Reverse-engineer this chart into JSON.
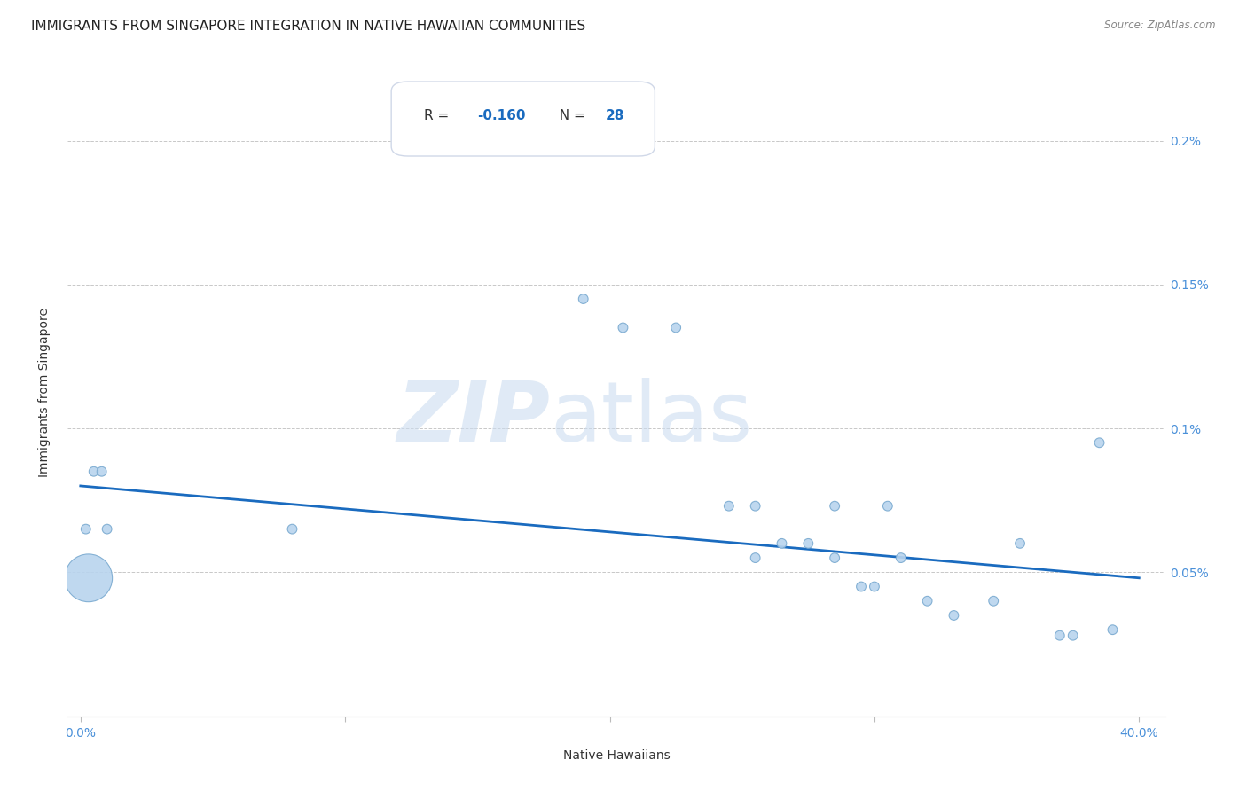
{
  "title": "IMMIGRANTS FROM SINGAPORE INTEGRATION IN NATIVE HAWAIIAN COMMUNITIES",
  "source": "Source: ZipAtlas.com",
  "xlabel": "Native Hawaiians",
  "ylabel": "Immigrants from Singapore",
  "R": -0.16,
  "N": 28,
  "xlim": [
    0.0,
    0.4
  ],
  "ylim": [
    0.0,
    0.0022
  ],
  "ytick_positions": [
    0.0,
    0.0005,
    0.001,
    0.0015,
    0.002
  ],
  "ytick_labels": [
    "",
    "0.05%",
    "0.1%",
    "0.15%",
    "0.2%"
  ],
  "xtick_positions": [
    0.0,
    0.1,
    0.2,
    0.3,
    0.4
  ],
  "xtick_labels": [
    "0.0%",
    "",
    "",
    "",
    "40.0%"
  ],
  "scatter_x": [
    0.002,
    0.005,
    0.008,
    0.01,
    0.003,
    0.08,
    0.19,
    0.205,
    0.225,
    0.245,
    0.255,
    0.255,
    0.265,
    0.275,
    0.285,
    0.285,
    0.295,
    0.3,
    0.305,
    0.31,
    0.32,
    0.33,
    0.345,
    0.355,
    0.37,
    0.375,
    0.385,
    0.39
  ],
  "scatter_y": [
    0.00065,
    0.00085,
    0.00085,
    0.00065,
    0.00048,
    0.00065,
    0.00145,
    0.00135,
    0.00135,
    0.00073,
    0.00073,
    0.00055,
    0.0006,
    0.0006,
    0.00055,
    0.00073,
    0.00045,
    0.00045,
    0.00073,
    0.00055,
    0.0004,
    0.00035,
    0.0004,
    0.0006,
    0.00028,
    0.00028,
    0.00095,
    0.0003
  ],
  "scatter_sizes": [
    60,
    60,
    60,
    60,
    1500,
    60,
    60,
    60,
    60,
    60,
    60,
    60,
    60,
    60,
    60,
    60,
    60,
    60,
    60,
    60,
    60,
    60,
    60,
    60,
    60,
    60,
    60,
    60
  ],
  "dot_color": "#b8d4ee",
  "dot_edgecolor": "#7aaad0",
  "line_color": "#1a6bbf",
  "line_x_start": 0.0,
  "line_x_end": 0.4,
  "line_y_start": 0.0008,
  "line_y_end": 0.00048,
  "background_color": "#ffffff",
  "grid_color": "#c8c8c8",
  "title_fontsize": 11,
  "axis_label_fontsize": 10,
  "tick_label_color": "#4a90d9",
  "annotation_border_color": "#d0d8e8"
}
